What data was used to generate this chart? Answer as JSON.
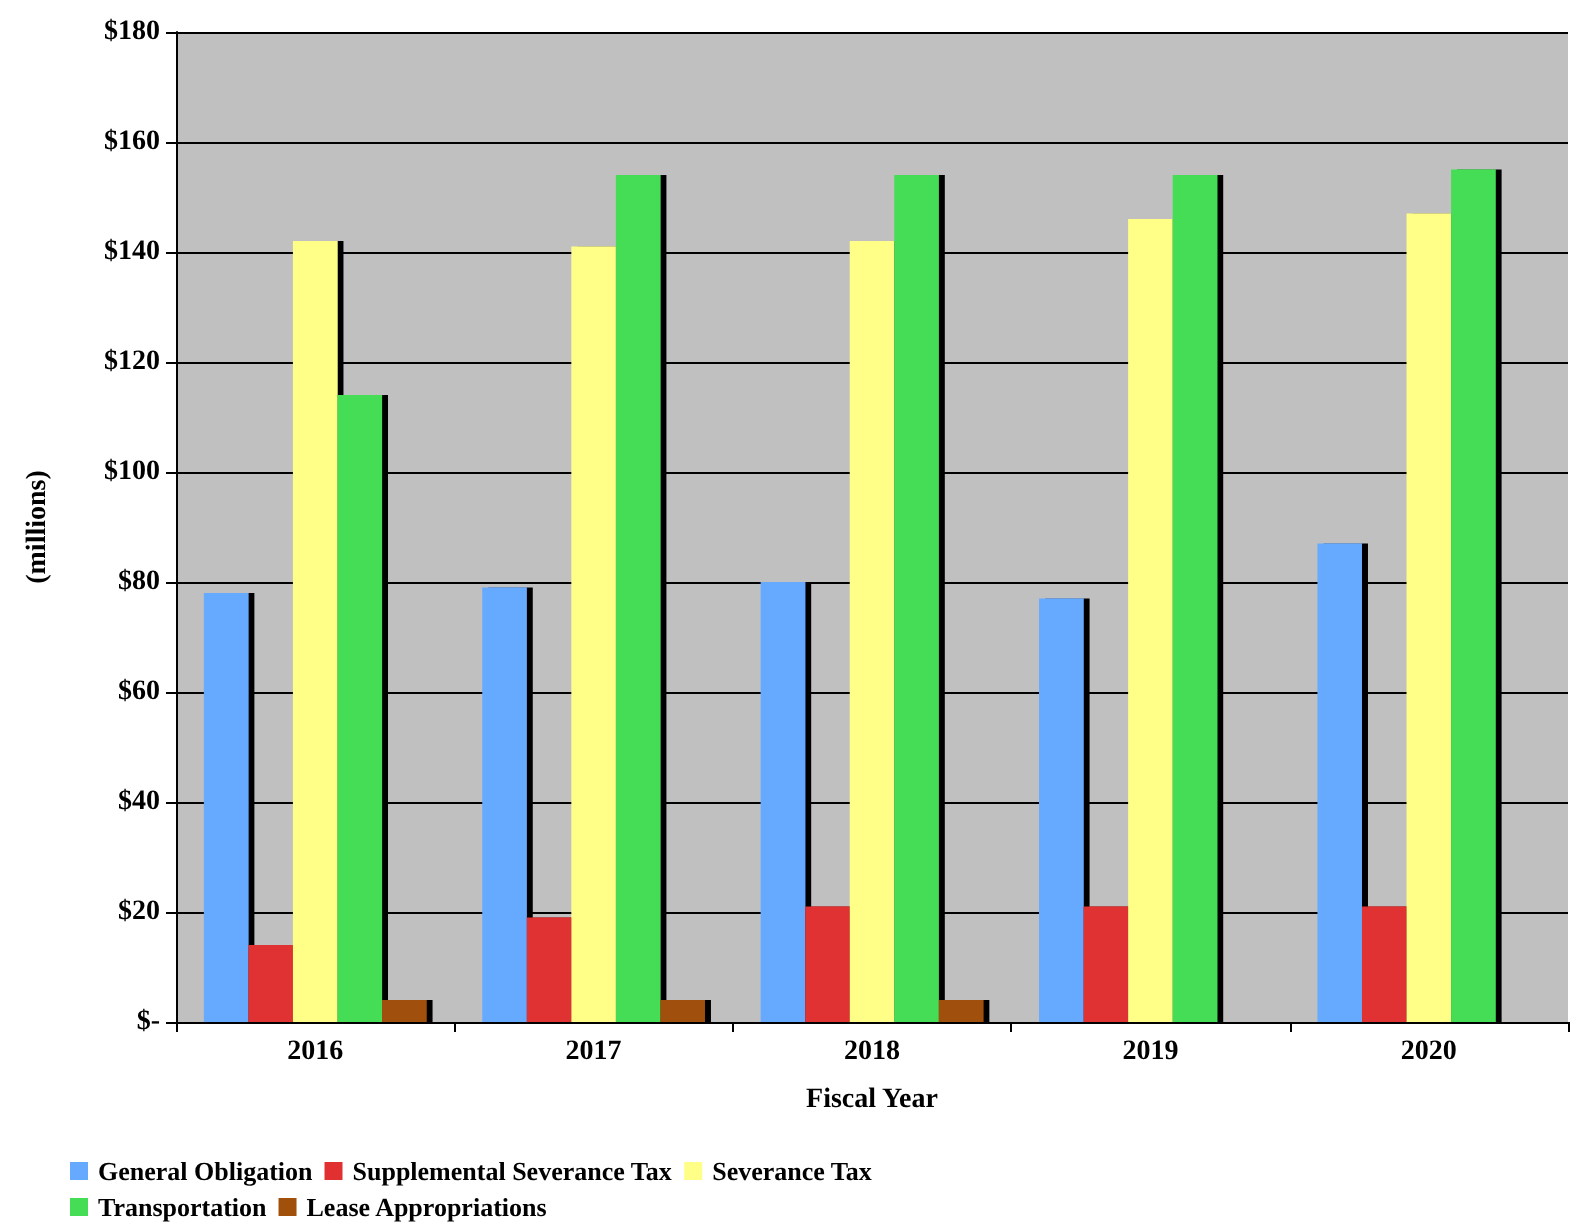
{
  "chart_data": {
    "type": "bar",
    "xlabel": "Fiscal Year",
    "ylabel": "(millions)",
    "categories": [
      "2016",
      "2017",
      "2018",
      "2019",
      "2020"
    ],
    "series": [
      {
        "name": "General Obligation",
        "color": "#66aaff",
        "values": [
          78,
          79,
          80,
          77,
          87
        ]
      },
      {
        "name": "Supplemental Severance Tax",
        "color": "#e03030",
        "values": [
          14,
          19,
          21,
          21,
          21
        ]
      },
      {
        "name": "Severance Tax",
        "color": "#ffff88",
        "values": [
          142,
          141,
          142,
          146,
          147
        ]
      },
      {
        "name": "Transportation",
        "color": "#44dd55",
        "values": [
          114,
          154,
          154,
          154,
          155
        ]
      },
      {
        "name": "Lease Appropriations",
        "color": "#a0500a",
        "values": [
          4,
          4,
          4,
          null,
          null
        ]
      }
    ],
    "ylim": [
      0,
      180
    ],
    "yticks": [
      {
        "value": 0,
        "label": "$-"
      },
      {
        "value": 20,
        "label": "$20"
      },
      {
        "value": 40,
        "label": "$40"
      },
      {
        "value": 60,
        "label": "$60"
      },
      {
        "value": 80,
        "label": "$80"
      },
      {
        "value": 100,
        "label": "$100"
      },
      {
        "value": 120,
        "label": "$120"
      },
      {
        "value": 140,
        "label": "$140"
      },
      {
        "value": 160,
        "label": "$160"
      },
      {
        "value": 180,
        "label": "$180"
      }
    ],
    "grid": "y",
    "legend": "bottom"
  }
}
